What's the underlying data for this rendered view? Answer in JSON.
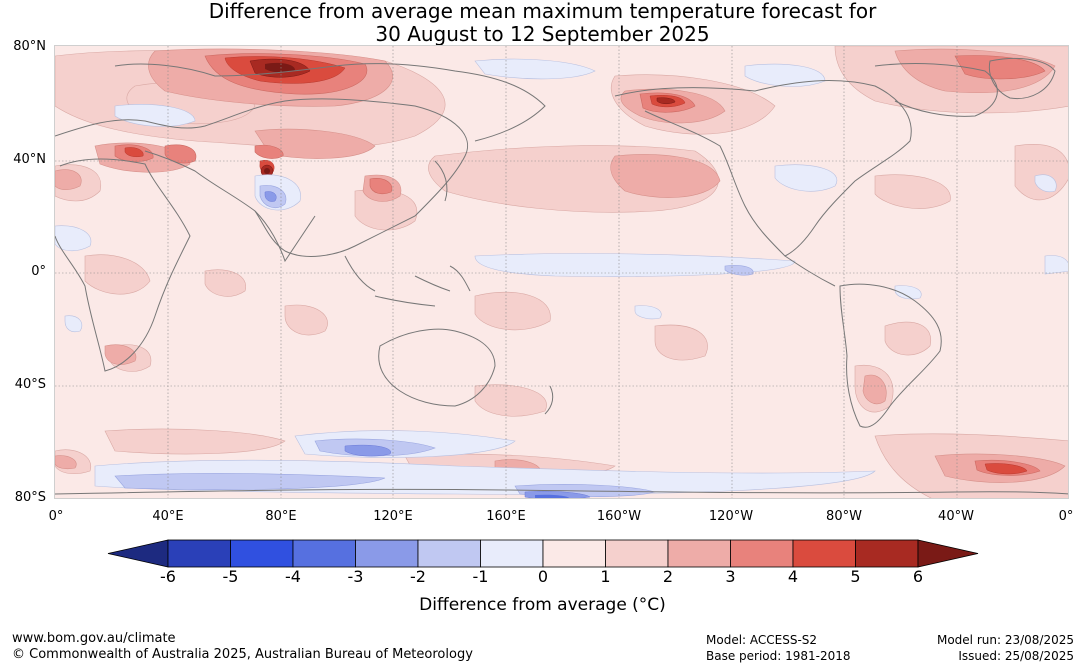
{
  "title": {
    "line1": "Difference from average mean maximum temperature forecast for",
    "line2": "30 August to 12 September 2025"
  },
  "map": {
    "lat_labels": [
      "80°N",
      "40°N",
      "0°",
      "40°S",
      "80°S"
    ],
    "lon_labels": [
      "0°",
      "40°E",
      "80°E",
      "120°E",
      "160°E",
      "160°W",
      "120°W",
      "80°W",
      "40°W",
      "0°"
    ],
    "background_color": "#fbe9e7",
    "coastline_color": "#777777"
  },
  "colorbar": {
    "ticks": [
      "-6",
      "-5",
      "-4",
      "-3",
      "-2",
      "-1",
      "0",
      "1",
      "2",
      "3",
      "4",
      "5",
      "6"
    ],
    "colors": [
      "#1d2a80",
      "#2a40b8",
      "#3050e0",
      "#5670e0",
      "#8a9ae8",
      "#c0c8f2",
      "#e8ecfb",
      "#fbe9e7",
      "#f5d0cd",
      "#eeaca8",
      "#e8827c",
      "#da4b3e",
      "#a82a22",
      "#7a1a16"
    ],
    "label": "Difference from average (°C)"
  },
  "footer": {
    "website": "www.bom.gov.au/climate",
    "copyright": "© Commonwealth of Australia 2025, Australian Bureau of Meteorology",
    "model": "Model: ACCESS-S2",
    "base_period": "Base period: 1981-2018",
    "model_run": "Model run: 23/08/2025",
    "issued": "Issued: 25/08/2025"
  }
}
